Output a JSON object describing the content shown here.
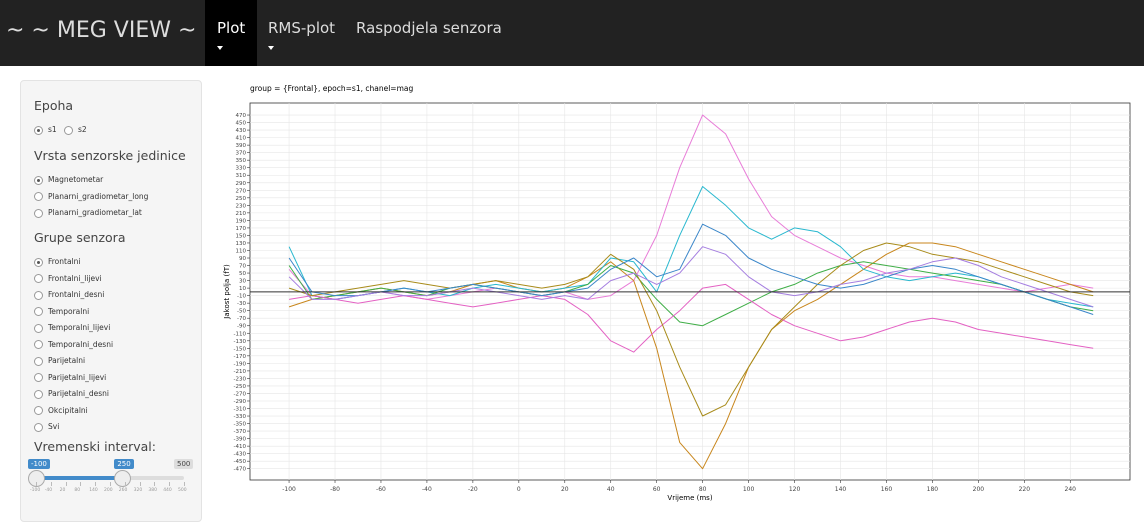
{
  "navbar": {
    "brand": "~ ~ MEG VIEW ~ ~",
    "tabs": [
      "Plot",
      "RMS-plot",
      "Raspodjela senzora"
    ]
  },
  "sidebar": {
    "epoch": {
      "label": "Epoha",
      "options": [
        "s1",
        "s2"
      ],
      "selected": 0
    },
    "unit": {
      "label": "Vrsta senzorske jedinice",
      "options": [
        "Magnetometar",
        "Planarni_gradiometar_long",
        "Planarni_gradiometar_lat"
      ],
      "selected": 0
    },
    "groups": {
      "label": "Grupe senzora",
      "options": [
        "Frontalni",
        "Frontalni_lijevi",
        "Frontalni_desni",
        "Temporalni",
        "Temporalni_lijevi",
        "Temporalni_desni",
        "Parijetalni",
        "Parijetalni_lijevi",
        "Parijetalni_desni",
        "Okcipitalni",
        "Svi"
      ],
      "selected": 0
    },
    "interval": {
      "label": "Vremenski interval:",
      "min": -100,
      "max": 500,
      "from": -100,
      "to": 250,
      "ticks": [
        -100,
        -40,
        20,
        80,
        140,
        200,
        260,
        320,
        380,
        440,
        500
      ]
    }
  },
  "chart_data": {
    "type": "line",
    "title": "group = {Frontal}, epoch=s1, chanel=mag",
    "xlabel": "Vrijeme (ms)",
    "ylabel": "Jakost polja (fT)",
    "x": [
      -100,
      -90,
      -80,
      -70,
      -60,
      -50,
      -40,
      -30,
      -20,
      -10,
      0,
      10,
      20,
      30,
      40,
      50,
      60,
      70,
      80,
      90,
      100,
      110,
      120,
      130,
      140,
      150,
      160,
      170,
      180,
      190,
      200,
      210,
      220,
      230,
      240,
      250
    ],
    "series": [
      {
        "color": "#e87dd8",
        "values": [
          60,
          -10,
          -20,
          -10,
          0,
          -10,
          -20,
          -10,
          0,
          10,
          0,
          -10,
          0,
          -20,
          -10,
          30,
          150,
          330,
          470,
          420,
          300,
          200,
          150,
          120,
          90,
          70,
          50,
          40,
          40,
          30,
          20,
          10,
          0,
          10,
          20,
          10
        ]
      },
      {
        "color": "#c8861c",
        "values": [
          -40,
          -20,
          -10,
          0,
          10,
          0,
          -10,
          0,
          20,
          30,
          10,
          0,
          10,
          40,
          80,
          30,
          -150,
          -400,
          -470,
          -350,
          -200,
          -100,
          -50,
          -20,
          20,
          60,
          100,
          130,
          130,
          120,
          100,
          80,
          60,
          40,
          20,
          0
        ]
      },
      {
        "color": "#29b8cf",
        "values": [
          120,
          -10,
          -20,
          -10,
          0,
          10,
          0,
          -10,
          10,
          20,
          10,
          0,
          10,
          20,
          90,
          80,
          0,
          150,
          280,
          230,
          170,
          140,
          170,
          160,
          120,
          60,
          40,
          30,
          40,
          50,
          40,
          20,
          0,
          -20,
          -30,
          -40
        ]
      },
      {
        "color": "#3fae47",
        "values": [
          70,
          -20,
          -10,
          0,
          10,
          0,
          -10,
          10,
          20,
          10,
          0,
          -10,
          0,
          20,
          70,
          50,
          -20,
          -80,
          -90,
          -60,
          -30,
          0,
          20,
          50,
          70,
          80,
          70,
          60,
          50,
          40,
          30,
          20,
          0,
          -20,
          -40,
          -50
        ]
      },
      {
        "color": "#e361c3",
        "values": [
          -20,
          -10,
          -20,
          -30,
          -20,
          -10,
          -20,
          -30,
          -40,
          -30,
          -20,
          -10,
          -20,
          -60,
          -130,
          -160,
          -100,
          -50,
          10,
          20,
          -20,
          -60,
          -90,
          -110,
          -130,
          -120,
          -100,
          -80,
          -70,
          -80,
          -100,
          -110,
          -120,
          -130,
          -140,
          -150
        ]
      },
      {
        "color": "#a88b1a",
        "values": [
          10,
          -10,
          0,
          10,
          20,
          30,
          20,
          10,
          20,
          30,
          20,
          10,
          20,
          40,
          100,
          60,
          -50,
          -200,
          -330,
          -300,
          -200,
          -100,
          -40,
          20,
          70,
          110,
          130,
          120,
          100,
          90,
          80,
          60,
          40,
          20,
          0,
          -10
        ]
      },
      {
        "color": "#3a86c9",
        "values": [
          90,
          0,
          -10,
          -10,
          0,
          10,
          0,
          10,
          20,
          10,
          0,
          -10,
          0,
          10,
          60,
          90,
          40,
          60,
          180,
          150,
          90,
          60,
          40,
          20,
          10,
          20,
          40,
          60,
          70,
          60,
          40,
          20,
          0,
          -20,
          -40,
          -60
        ]
      },
      {
        "color": "#a57ee0",
        "values": [
          40,
          -20,
          -20,
          -10,
          0,
          -10,
          -10,
          0,
          10,
          0,
          -10,
          -20,
          -10,
          -20,
          30,
          50,
          20,
          50,
          120,
          100,
          40,
          0,
          -10,
          0,
          20,
          30,
          50,
          60,
          80,
          90,
          70,
          40,
          20,
          0,
          -20,
          -40
        ]
      }
    ],
    "hline": 0,
    "xlim": [
      -117,
      266
    ],
    "ylim": [
      -500,
      502
    ],
    "xticks": [
      -100,
      -80,
      -60,
      -40,
      -20,
      0,
      20,
      40,
      60,
      80,
      100,
      120,
      140,
      160,
      180,
      200,
      220,
      240
    ],
    "yticks": [
      -470,
      -450,
      -430,
      -410,
      -390,
      -370,
      -350,
      -330,
      -310,
      -290,
      -270,
      -250,
      -230,
      -210,
      -190,
      -170,
      -150,
      -130,
      -110,
      -90,
      -70,
      -50,
      -30,
      -10,
      10,
      30,
      50,
      70,
      90,
      110,
      130,
      150,
      170,
      190,
      210,
      230,
      250,
      270,
      290,
      310,
      330,
      350,
      370,
      390,
      410,
      430,
      450,
      470
    ],
    "grid": true
  }
}
